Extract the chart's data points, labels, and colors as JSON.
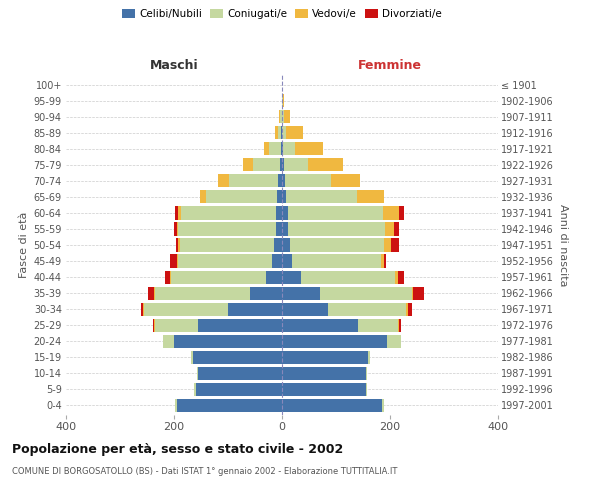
{
  "age_groups": [
    "0-4",
    "5-9",
    "10-14",
    "15-19",
    "20-24",
    "25-29",
    "30-34",
    "35-39",
    "40-44",
    "45-49",
    "50-54",
    "55-59",
    "60-64",
    "65-69",
    "70-74",
    "75-79",
    "80-84",
    "85-89",
    "90-94",
    "95-99",
    "100+"
  ],
  "birth_years": [
    "1997-2001",
    "1992-1996",
    "1987-1991",
    "1982-1986",
    "1977-1981",
    "1972-1976",
    "1967-1971",
    "1962-1966",
    "1957-1961",
    "1952-1956",
    "1947-1951",
    "1942-1946",
    "1937-1941",
    "1932-1936",
    "1927-1931",
    "1922-1926",
    "1917-1921",
    "1912-1916",
    "1907-1911",
    "1902-1906",
    "≤ 1901"
  ],
  "male": {
    "celibi": [
      195,
      160,
      155,
      165,
      200,
      155,
      100,
      60,
      30,
      18,
      14,
      12,
      12,
      10,
      8,
      4,
      2,
      1,
      0,
      0,
      0
    ],
    "coniugati": [
      3,
      3,
      3,
      3,
      20,
      80,
      155,
      175,
      175,
      175,
      175,
      180,
      175,
      130,
      90,
      50,
      22,
      6,
      3,
      0,
      0
    ],
    "vedovi": [
      0,
      0,
      0,
      0,
      0,
      2,
      2,
      2,
      2,
      2,
      3,
      3,
      6,
      12,
      20,
      18,
      10,
      6,
      2,
      0,
      0
    ],
    "divorziati": [
      0,
      0,
      0,
      0,
      0,
      2,
      5,
      12,
      10,
      12,
      5,
      5,
      5,
      0,
      0,
      0,
      0,
      0,
      0,
      0,
      0
    ]
  },
  "female": {
    "nubili": [
      185,
      155,
      155,
      160,
      195,
      140,
      85,
      70,
      35,
      18,
      14,
      12,
      12,
      8,
      5,
      3,
      2,
      0,
      0,
      0,
      0
    ],
    "coniugate": [
      3,
      3,
      3,
      3,
      25,
      75,
      145,
      170,
      175,
      165,
      175,
      178,
      175,
      130,
      85,
      45,
      22,
      8,
      4,
      2,
      0
    ],
    "vedove": [
      0,
      0,
      0,
      0,
      0,
      2,
      3,
      3,
      5,
      5,
      12,
      18,
      30,
      50,
      55,
      65,
      52,
      30,
      10,
      2,
      0
    ],
    "divorziate": [
      0,
      0,
      0,
      0,
      0,
      3,
      8,
      20,
      10,
      5,
      15,
      8,
      8,
      0,
      0,
      0,
      0,
      0,
      0,
      0,
      0
    ]
  },
  "colors": {
    "celibi": "#4472a8",
    "coniugati": "#c5d8a0",
    "vedovi": "#f0b840",
    "divorziati": "#cc1111"
  },
  "title": "Popolazione per età, sesso e stato civile - 2002",
  "subtitle": "COMUNE DI BORGOSATOLLO (BS) - Dati ISTAT 1° gennaio 2002 - Elaborazione TUTTITALIA.IT",
  "xlabel_left": "Maschi",
  "xlabel_right": "Femmine",
  "ylabel_left": "Fasce di età",
  "ylabel_right": "Anni di nascita",
  "xlim": 400,
  "background_color": "#ffffff",
  "grid_color": "#cccccc"
}
